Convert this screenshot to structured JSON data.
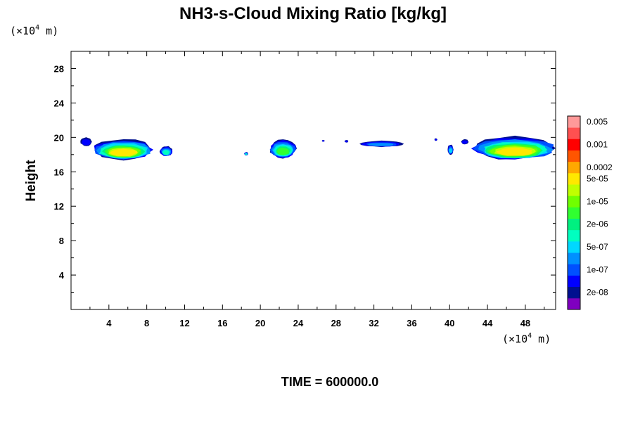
{
  "chart_data": {
    "type": "heatmap",
    "title": "NH3-s-Cloud Mixing Ratio [kg/kg]",
    "ylabel": "Height",
    "xlabel": "",
    "x_unit": {
      "prefix": "(×10",
      "exp": "4",
      "suffix": " m)"
    },
    "y_unit": {
      "prefix": "(×10",
      "exp": "4",
      "suffix": " m)"
    },
    "xlim": [
      0,
      51.2
    ],
    "ylim": [
      0,
      30
    ],
    "x_major_ticks": [
      4,
      8,
      12,
      16,
      20,
      24,
      28,
      32,
      36,
      40,
      44,
      48
    ],
    "x_minor_step": 2,
    "y_major_ticks": [
      4,
      8,
      12,
      16,
      20,
      24,
      28
    ],
    "y_minor_step": 2,
    "grid": false,
    "colorbar": {
      "colors": [
        "#7f00bf",
        "#00108f",
        "#0000ff",
        "#0050ff",
        "#0090ff",
        "#00d8ff",
        "#00ffc0",
        "#00f080",
        "#30ff30",
        "#70ff00",
        "#c0ff00",
        "#ffe800",
        "#ffa800",
        "#ff5500",
        "#ff0000",
        "#ff5050",
        "#ff9999"
      ],
      "labels": [
        {
          "text": "2e-08",
          "level_index": 1
        },
        {
          "text": "1e-07",
          "level_index": 3
        },
        {
          "text": "5e-07",
          "level_index": 5
        },
        {
          "text": "2e-06",
          "level_index": 7
        },
        {
          "text": "1e-05",
          "level_index": 9
        },
        {
          "text": "5e-05",
          "level_index": 11
        },
        {
          "text": "0.0002",
          "level_index": 12
        },
        {
          "text": "0.001",
          "level_index": 14
        },
        {
          "text": "0.005",
          "level_index": 16
        }
      ]
    },
    "cloud_patches": [
      {
        "x": [
          1.0,
          2.2
        ],
        "y": [
          19.0,
          20.0
        ],
        "peak_level": 2
      },
      {
        "x": [
          2.4,
          8.7
        ],
        "y": [
          17.4,
          19.8
        ],
        "peak_level": 11
      },
      {
        "x": [
          9.4,
          10.7
        ],
        "y": [
          17.8,
          19.0
        ],
        "peak_level": 6
      },
      {
        "x": [
          18.3,
          18.7
        ],
        "y": [
          17.9,
          18.3
        ],
        "peak_level": 6
      },
      {
        "x": [
          21.0,
          23.8
        ],
        "y": [
          17.6,
          19.8
        ],
        "peak_level": 8
      },
      {
        "x": [
          26.5,
          26.8
        ],
        "y": [
          19.5,
          19.7
        ],
        "peak_level": 2
      },
      {
        "x": [
          28.9,
          29.3
        ],
        "y": [
          19.4,
          19.7
        ],
        "peak_level": 2
      },
      {
        "x": [
          30.6,
          35.0
        ],
        "y": [
          18.9,
          19.6
        ],
        "peak_level": 4
      },
      {
        "x": [
          38.4,
          38.7
        ],
        "y": [
          19.6,
          19.9
        ],
        "peak_level": 2
      },
      {
        "x": [
          39.8,
          40.4
        ],
        "y": [
          18.0,
          19.2
        ],
        "peak_level": 5
      },
      {
        "x": [
          41.2,
          42.0
        ],
        "y": [
          19.2,
          19.8
        ],
        "peak_level": 2
      },
      {
        "x": [
          42.6,
          51.2
        ],
        "y": [
          17.4,
          20.1
        ],
        "peak_level": 11
      }
    ]
  },
  "footer": {
    "time_text": "TIME = 600000.0"
  }
}
